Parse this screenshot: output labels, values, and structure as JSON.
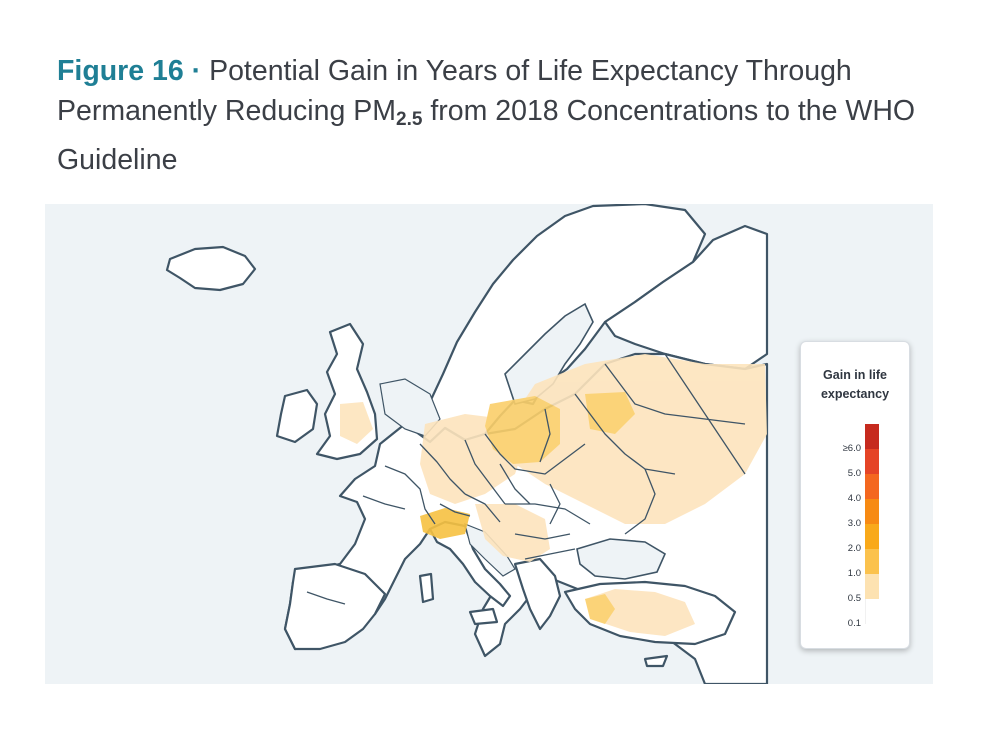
{
  "title": {
    "figure_label": "Figure 16",
    "separator": "·",
    "text_before_sub": "Potential Gain in Years of Life Expectancy Through Permanently Reducing PM",
    "subscript": "2.5",
    "text_after_sub": " from 2018 Concentrations to the WHO Guideline"
  },
  "legend": {
    "title_line1": "Gain in life",
    "title_line2": "expectancy",
    "ticks": [
      "≥6.0",
      "5.0",
      "4.0",
      "3.0",
      "2.0",
      "1.0",
      "0.5",
      "0.1"
    ],
    "colors": [
      "#c62a1e",
      "#e54426",
      "#f4671f",
      "#f78a13",
      "#f9a91a",
      "#fbc24d",
      "#fde2b1",
      "#ffffff"
    ]
  },
  "map": {
    "region": "Europe",
    "land_color": "#ffffff",
    "water_color": "#eef3f6",
    "border_color": "#3f5566",
    "level_colors": {
      "low": "#fde4bd",
      "mid": "#fbcf6a",
      "high": "#f7c242"
    }
  }
}
